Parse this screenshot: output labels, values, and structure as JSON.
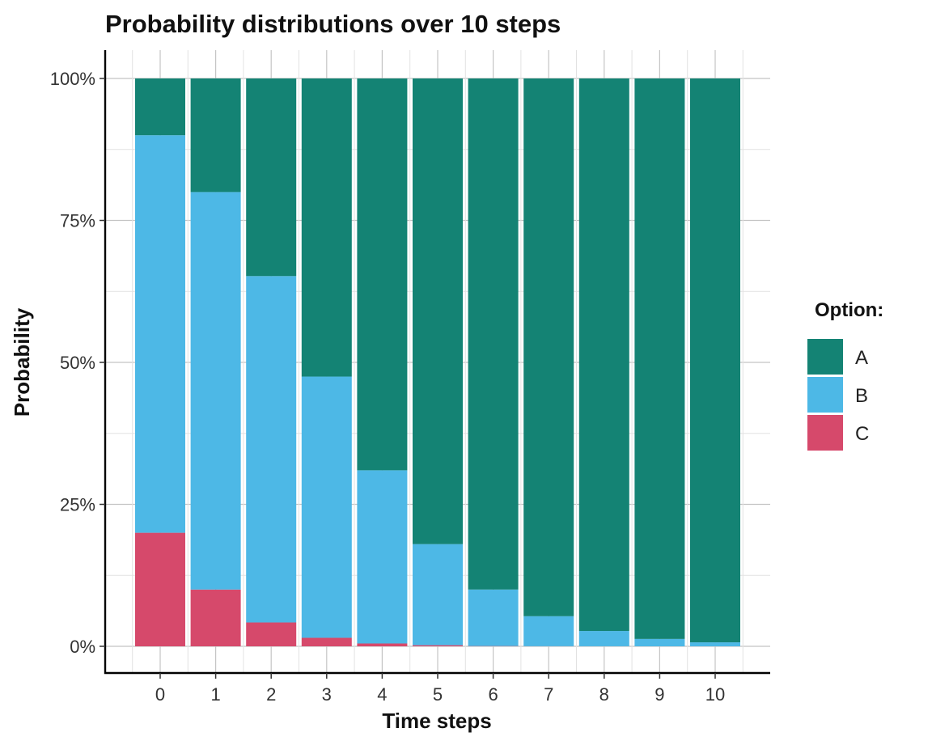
{
  "chart_data": {
    "type": "bar",
    "stacked": true,
    "title": "Probability distributions over 10 steps",
    "xlabel": "Time steps",
    "ylabel": "Probability",
    "categories": [
      "0",
      "1",
      "2",
      "3",
      "4",
      "5",
      "6",
      "7",
      "8",
      "9",
      "10"
    ],
    "ylim": [
      0,
      1
    ],
    "yticks": [
      0,
      0.25,
      0.5,
      0.75,
      1
    ],
    "ytick_labels": [
      "0%",
      "25%",
      "50%",
      "75%",
      "100%"
    ],
    "grid": true,
    "legend": {
      "title": "Option:",
      "position": "right"
    },
    "series": [
      {
        "name": "C",
        "color": "#d6496b",
        "values": [
          0.2,
          0.1,
          0.042,
          0.015,
          0.005,
          0.002,
          0.0005,
          0.0002,
          0.0001,
          0.0,
          0.0
        ]
      },
      {
        "name": "B",
        "color": "#4db8e6",
        "values": [
          0.7,
          0.7,
          0.61,
          0.46,
          0.305,
          0.178,
          0.0995,
          0.0528,
          0.0269,
          0.013,
          0.007
        ]
      },
      {
        "name": "A",
        "color": "#148374",
        "values": [
          0.1,
          0.2,
          0.348,
          0.525,
          0.69,
          0.82,
          0.9,
          0.947,
          0.973,
          0.987,
          0.993
        ]
      }
    ]
  }
}
